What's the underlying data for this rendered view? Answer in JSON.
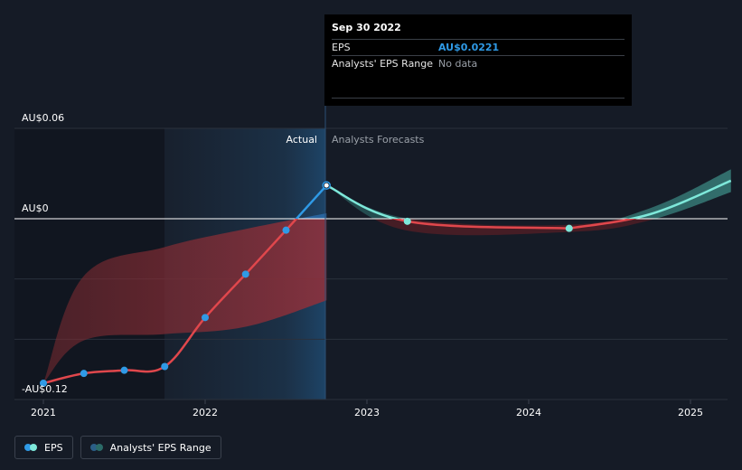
{
  "chart_data": {
    "type": "line",
    "x_ticks": [
      "2021",
      "2022",
      "2023",
      "2024",
      "2025"
    ],
    "y_labels": {
      "top": "AU$0.06",
      "zero": "AU$0",
      "bottom": "-AU$0.12"
    },
    "ylim": [
      -0.12,
      0.06
    ],
    "segments": {
      "actual_label": "Actual",
      "forecast_label": "Analysts Forecasts"
    },
    "series": [
      {
        "name": "EPS",
        "kind": "actual",
        "points": [
          [
            2021.0,
            -0.1092
          ],
          [
            2021.25,
            -0.1027
          ],
          [
            2021.5,
            -0.1006
          ],
          [
            2021.75,
            -0.0981
          ],
          [
            2022.0,
            -0.0656
          ],
          [
            2022.25,
            -0.0368
          ],
          [
            2022.5,
            -0.0076
          ],
          [
            2022.75,
            0.0221
          ]
        ]
      },
      {
        "name": "EPS forecast",
        "kind": "forecast",
        "points": [
          [
            2022.75,
            0.0221
          ],
          [
            2023.25,
            -0.0017
          ],
          [
            2024.25,
            -0.0064
          ]
        ]
      }
    ],
    "ranges": [
      {
        "name": "Analysts' EPS Range",
        "kind": "past",
        "upper": [
          [
            2021.0,
            -0.1092
          ],
          [
            2021.25,
            -0.038
          ],
          [
            2021.75,
            -0.0188
          ],
          [
            2022.25,
            -0.0068
          ],
          [
            2022.75,
            0.0036
          ]
        ],
        "lower": [
          [
            2021.0,
            -0.1092
          ],
          [
            2021.25,
            -0.0808
          ],
          [
            2021.75,
            -0.0766
          ],
          [
            2022.25,
            -0.0717
          ],
          [
            2022.75,
            -0.0542
          ]
        ]
      },
      {
        "name": "Analysts' EPS Range",
        "kind": "forecast",
        "upper": [
          [
            2022.75,
            0.0221
          ],
          [
            2023.25,
            0.0002
          ],
          [
            2024.25,
            -0.004
          ],
          [
            2024.75,
            0.007
          ],
          [
            2025.25,
            0.0328
          ]
        ],
        "lower": [
          [
            2022.75,
            0.0221
          ],
          [
            2023.25,
            -0.0079
          ],
          [
            2024.25,
            -0.0088
          ],
          [
            2024.75,
            -0.001
          ],
          [
            2025.25,
            0.0177
          ]
        ]
      }
    ],
    "tooltip": {
      "date": "Sep 30 2022",
      "rows": [
        {
          "label": "EPS",
          "value": "AU$0.0221"
        },
        {
          "label": "Analysts' EPS Range",
          "value": "No data"
        }
      ]
    },
    "legend": [
      "EPS",
      "Analysts' EPS Range"
    ],
    "colors": {
      "eps_actual_negative": "#e0474c",
      "eps_actual_positive": "#2f9ae6",
      "eps_forecast_positive": "#7ee8da",
      "eps_forecast_negative": "#e0474c",
      "range_past": "#8e2a30",
      "range_forecast": "#2b6b68"
    }
  }
}
